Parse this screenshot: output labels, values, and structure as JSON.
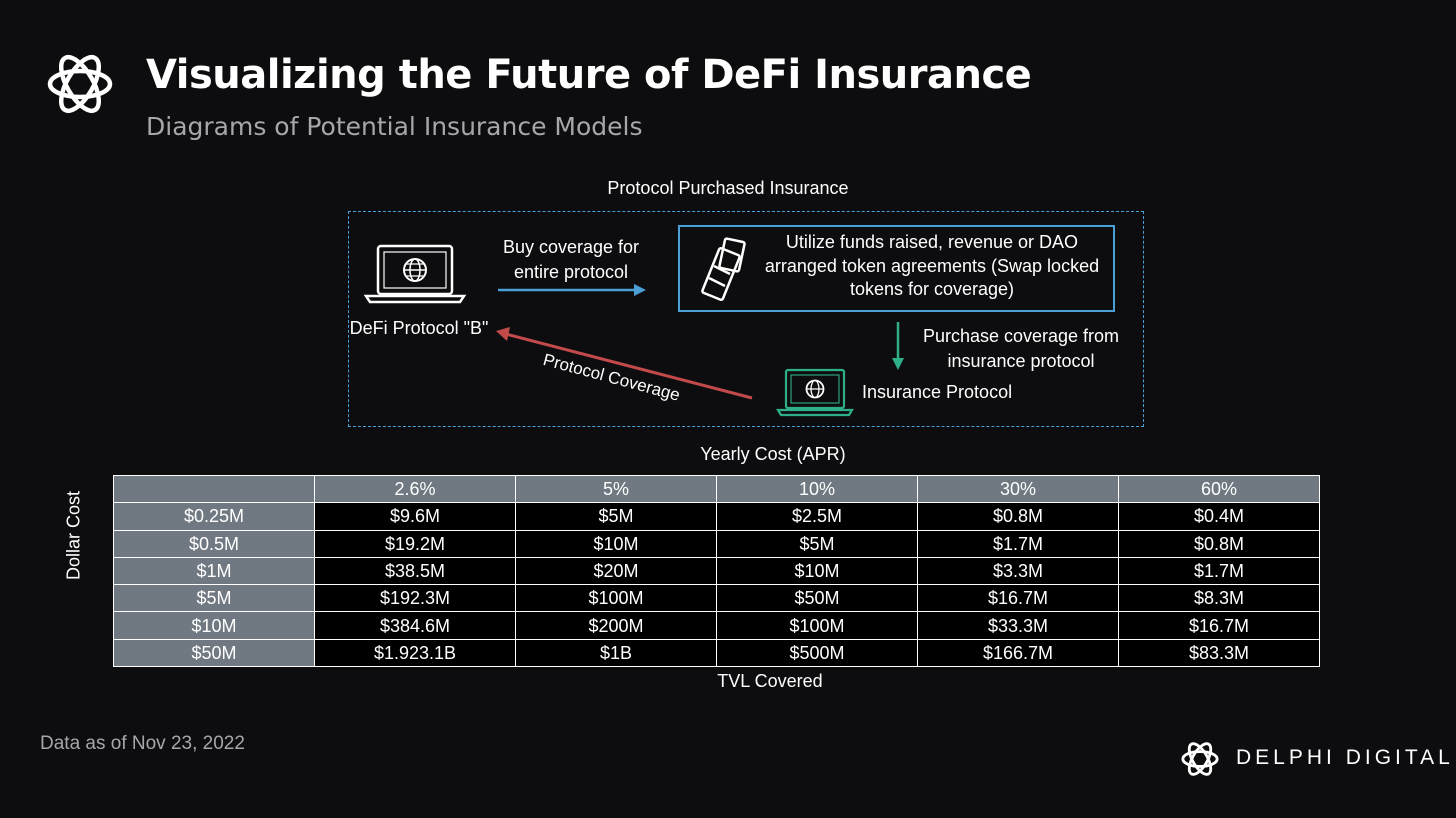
{
  "header": {
    "title": "Visualizing the Future of DeFi Insurance",
    "subtitle": "Diagrams of Potential Insurance Models",
    "logo_icon": "delphi-knot-icon"
  },
  "diagram": {
    "title": "Protocol Purchased Insurance",
    "defi_protocol_label": "DeFi Protocol \"B\"",
    "buy_coverage_label": "Buy coverage for entire protocol",
    "funds_text": "Utilize funds raised, revenue or DAO arranged token agreements (Swap locked tokens for coverage)",
    "purchase_coverage_label": "Purchase coverage from insurance protocol",
    "insurance_protocol_label": "Insurance Protocol",
    "protocol_coverage_label": "Protocol Coverage",
    "colors": {
      "accent_blue": "#4a9fd6",
      "green": "#2fae8a",
      "red": "#c24a4a"
    }
  },
  "table": {
    "top_label": "Yearly Cost (APR)",
    "side_label": "Dollar Cost",
    "bottom_label": "TVL Covered",
    "columns": [
      "",
      "2.6%",
      "5%",
      "10%",
      "30%",
      "60%"
    ],
    "rows": [
      [
        "$0.25M",
        "$9.6M",
        "$5M",
        "$2.5M",
        "$0.8M",
        "$0.4M"
      ],
      [
        "$0.5M",
        "$19.2M",
        "$10M",
        "$5M",
        "$1.7M",
        "$0.8M"
      ],
      [
        "$1M",
        "$38.5M",
        "$20M",
        "$10M",
        "$3.3M",
        "$1.7M"
      ],
      [
        "$5M",
        "$192.3M",
        "$100M",
        "$50M",
        "$16.7M",
        "$8.3M"
      ],
      [
        "$10M",
        "$384.6M",
        "$200M",
        "$100M",
        "$33.3M",
        "$16.7M"
      ],
      [
        "$50M",
        "$1.923.1B",
        "$1B",
        "$500M",
        "$166.7M",
        "$83.3M"
      ]
    ],
    "header_color": "#707982"
  },
  "footer": {
    "note": "Data as of Nov 23, 2022",
    "brand": "DELPHI DIGITAL"
  }
}
